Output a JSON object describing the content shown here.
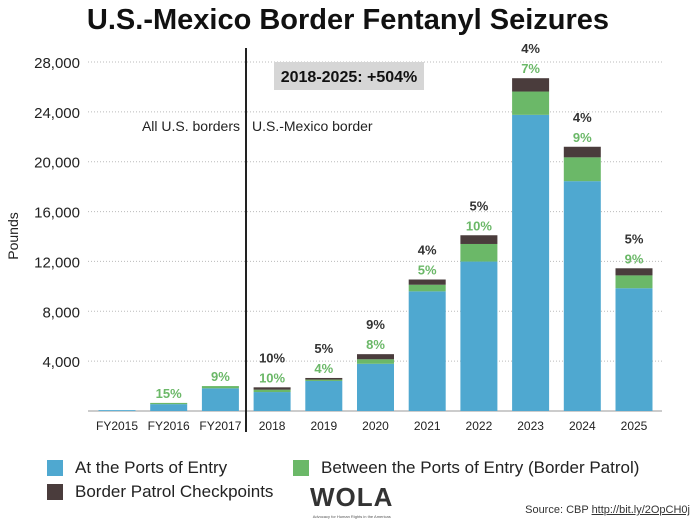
{
  "chart_data": {
    "type": "bar",
    "stacked": true,
    "title": "U.S.-Mexico Border Fentanyl Seizures",
    "ylabel": "Pounds",
    "xlabel": "",
    "ylim": [
      0,
      28000
    ],
    "yticks": [
      4000,
      8000,
      12000,
      16000,
      20000,
      24000,
      28000
    ],
    "ytick_labels": [
      "4,000",
      "8,000",
      "12,000",
      "16,000",
      "20,000",
      "24,000",
      "28,000"
    ],
    "grid": "horizontal dotted",
    "categories": [
      "FY2015",
      "FY2016",
      "FY2017",
      "2018",
      "2019",
      "2020",
      "2021",
      "2022",
      "2023",
      "2024",
      "2025"
    ],
    "series": [
      {
        "name": "At the Ports of Entry",
        "color": "#4fa8d0",
        "values": [
          70,
          550,
          1820,
          1520,
          2410,
          3790,
          9600,
          11990,
          23760,
          18440,
          9850
        ]
      },
      {
        "name": "Between the Ports of Entry (Border Patrol)",
        "color": "#6bb868",
        "values": [
          0,
          100,
          180,
          190,
          110,
          360,
          530,
          1410,
          1870,
          1910,
          1030
        ]
      },
      {
        "name": "Border Patrol Checkpoints",
        "color": "#4a3c3c",
        "values": [
          0,
          0,
          0,
          190,
          130,
          410,
          420,
          700,
          1070,
          850,
          570
        ]
      }
    ],
    "labels_between": [
      "",
      "15%",
      "9%",
      "10%",
      "4%",
      "8%",
      "5%",
      "10%",
      "7%",
      "9%",
      "9%"
    ],
    "labels_checkpoints": [
      "",
      "",
      "",
      "10%",
      "5%",
      "9%",
      "4%",
      "5%",
      "4%",
      "4%",
      "5%"
    ],
    "annotations": {
      "change_box": "2018-2025: +504%",
      "left_region": "All U.S. borders",
      "right_region": "U.S.-Mexico border"
    }
  },
  "legend": [
    "At the Ports of Entry",
    "Between the Ports of Entry (Border Patrol)",
    "Border Patrol Checkpoints"
  ],
  "logo": {
    "text": "WOLA",
    "tagline": "Advocacy for Human Rights in the Americas"
  },
  "source": {
    "prefix": "Source: CBP",
    "link": "http://bit.ly/2OpCH0j"
  }
}
